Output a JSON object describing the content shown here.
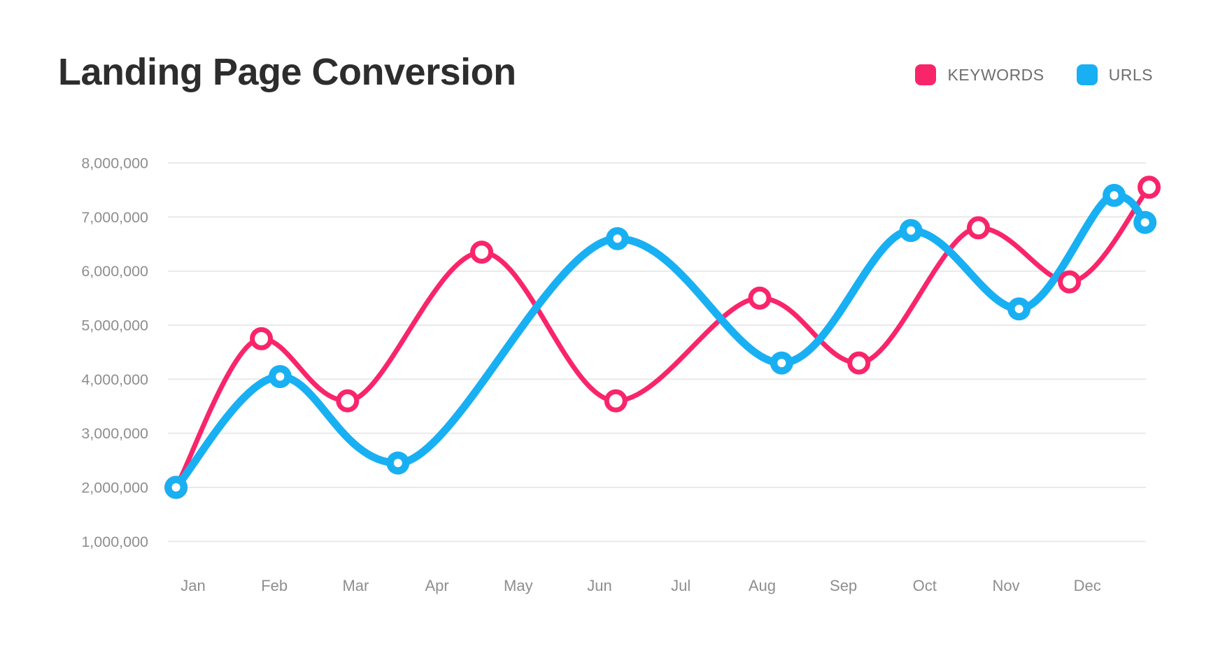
{
  "header": {
    "title": "Landing Page Conversion"
  },
  "legend": {
    "items": [
      {
        "label": "KEYWORDS",
        "color": "#f9256b"
      },
      {
        "label": "URLS",
        "color": "#18b0f2"
      }
    ]
  },
  "chart_data": {
    "type": "line",
    "title": "Landing Page Conversion",
    "x_categories": [
      "Jan",
      "Feb",
      "Mar",
      "Apr",
      "May",
      "Jun",
      "Jul",
      "Aug",
      "Sep",
      "Oct",
      "Nov",
      "Dec"
    ],
    "x_unit": "month-axis units, 1 = Jan, 12 = Dec, fractional positions allowed",
    "y_tick_labels": [
      "8,000,000",
      "7,000,000",
      "6,000,000",
      "5,000,000",
      "4,000,000",
      "3,000,000",
      "2,000,000",
      "1,000,000"
    ],
    "y_axis": {
      "min": 1000000,
      "max": 8000000,
      "step": 1000000
    },
    "grid": "horizontal",
    "legend_position": "top-right",
    "background": "#ffffff",
    "grid_color": "#e9e9e9",
    "axis_label_color": "#8e8e8e",
    "series": [
      {
        "name": "KEYWORDS",
        "color": "#f9256b",
        "marker": "open-circle",
        "line_width": 7,
        "points": [
          {
            "x": 0.79,
            "y": 2000000
          },
          {
            "x": 1.84,
            "y": 4750000
          },
          {
            "x": 2.9,
            "y": 3600000
          },
          {
            "x": 4.55,
            "y": 6350000
          },
          {
            "x": 6.2,
            "y": 3600000
          },
          {
            "x": 7.97,
            "y": 5500000
          },
          {
            "x": 9.19,
            "y": 4300000
          },
          {
            "x": 10.66,
            "y": 6800000
          },
          {
            "x": 11.78,
            "y": 5800000
          },
          {
            "x": 12.76,
            "y": 7550000
          }
        ]
      },
      {
        "name": "URLS",
        "color": "#18b0f2",
        "marker": "filled-circle-white-dot",
        "line_width": 11,
        "points": [
          {
            "x": 0.79,
            "y": 2000000
          },
          {
            "x": 2.07,
            "y": 4050000
          },
          {
            "x": 3.52,
            "y": 2450000
          },
          {
            "x": 6.22,
            "y": 6600000
          },
          {
            "x": 8.24,
            "y": 4300000
          },
          {
            "x": 9.83,
            "y": 6750000
          },
          {
            "x": 11.16,
            "y": 5300000
          },
          {
            "x": 12.33,
            "y": 7400000
          },
          {
            "x": 12.71,
            "y": 6900000
          }
        ]
      }
    ]
  }
}
